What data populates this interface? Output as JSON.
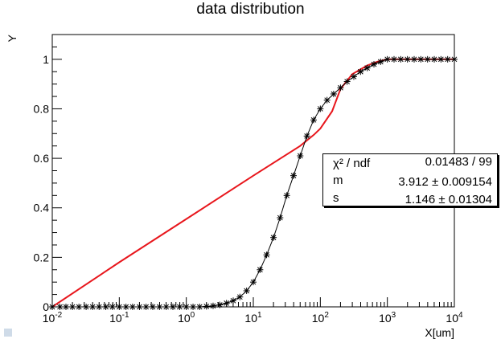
{
  "title": "data distribution",
  "chart_data": {
    "type": "scatter",
    "title": "data distribution",
    "xlabel": "X[um]",
    "ylabel": "Y",
    "x_scale": "log",
    "xlim": [
      0.01,
      10000
    ],
    "ylim": [
      0,
      1.1
    ],
    "x_tick_labels": [
      {
        "base": "10",
        "exp": "-2"
      },
      {
        "base": "10",
        "exp": "-1"
      },
      {
        "base": "10",
        "exp": "0"
      },
      {
        "base": "10",
        "exp": "1"
      },
      {
        "base": "10",
        "exp": "2"
      },
      {
        "base": "10",
        "exp": "3"
      },
      {
        "base": "10",
        "exp": "4"
      }
    ],
    "y_tick_labels": [
      "0",
      "0.2",
      "0.4",
      "0.6",
      "0.8",
      "1"
    ],
    "series": [
      {
        "kind": "data points with line",
        "marker": "asterisk",
        "color": "#000000",
        "x": [
          0.01,
          0.013,
          0.016,
          0.02,
          0.025,
          0.032,
          0.04,
          0.05,
          0.063,
          0.079,
          0.1,
          0.126,
          0.158,
          0.2,
          0.251,
          0.316,
          0.398,
          0.501,
          0.631,
          0.794,
          1.0,
          1.26,
          1.58,
          2.0,
          2.51,
          3.16,
          3.98,
          5.01,
          6.31,
          7.94,
          10.0,
          12.6,
          15.8,
          20.0,
          25.1,
          31.6,
          39.8,
          50.1,
          63.1,
          79.4,
          100,
          126,
          158,
          200,
          251,
          316,
          398,
          501,
          631,
          794,
          1000,
          1259,
          1585,
          1995,
          2512,
          3162,
          3981,
          5012,
          6310,
          7943,
          10000
        ],
        "y": [
          0,
          0,
          0,
          0,
          0,
          0,
          0,
          0,
          0,
          0,
          0,
          0,
          0,
          0,
          0,
          0,
          0,
          0,
          0,
          0,
          0,
          0,
          0,
          0.002,
          0.004,
          0.008,
          0.015,
          0.025,
          0.04,
          0.065,
          0.1,
          0.15,
          0.21,
          0.28,
          0.36,
          0.45,
          0.53,
          0.61,
          0.69,
          0.755,
          0.8,
          0.835,
          0.86,
          0.885,
          0.91,
          0.93,
          0.95,
          0.965,
          0.98,
          0.99,
          1,
          1,
          1,
          1,
          1,
          1,
          1,
          1,
          1,
          1,
          1
        ]
      },
      {
        "kind": "fit",
        "color": "#e8161c",
        "x": [
          0.01,
          0.1,
          1,
          10,
          50,
          80,
          100,
          150,
          200,
          300,
          500,
          700,
          1000,
          10000
        ],
        "y": [
          0,
          0.18,
          0.355,
          0.53,
          0.65,
          0.695,
          0.72,
          0.79,
          0.88,
          0.94,
          0.975,
          0.99,
          1,
          1
        ]
      }
    ],
    "stats_box": {
      "chi2_label": "χ² / ndf",
      "chi2_value": "0.01483 / 99",
      "m_label": "m",
      "m_value": "3.912 ± 0.009154",
      "s_label": "s",
      "s_value": "1.146 ± 0.01304"
    }
  }
}
